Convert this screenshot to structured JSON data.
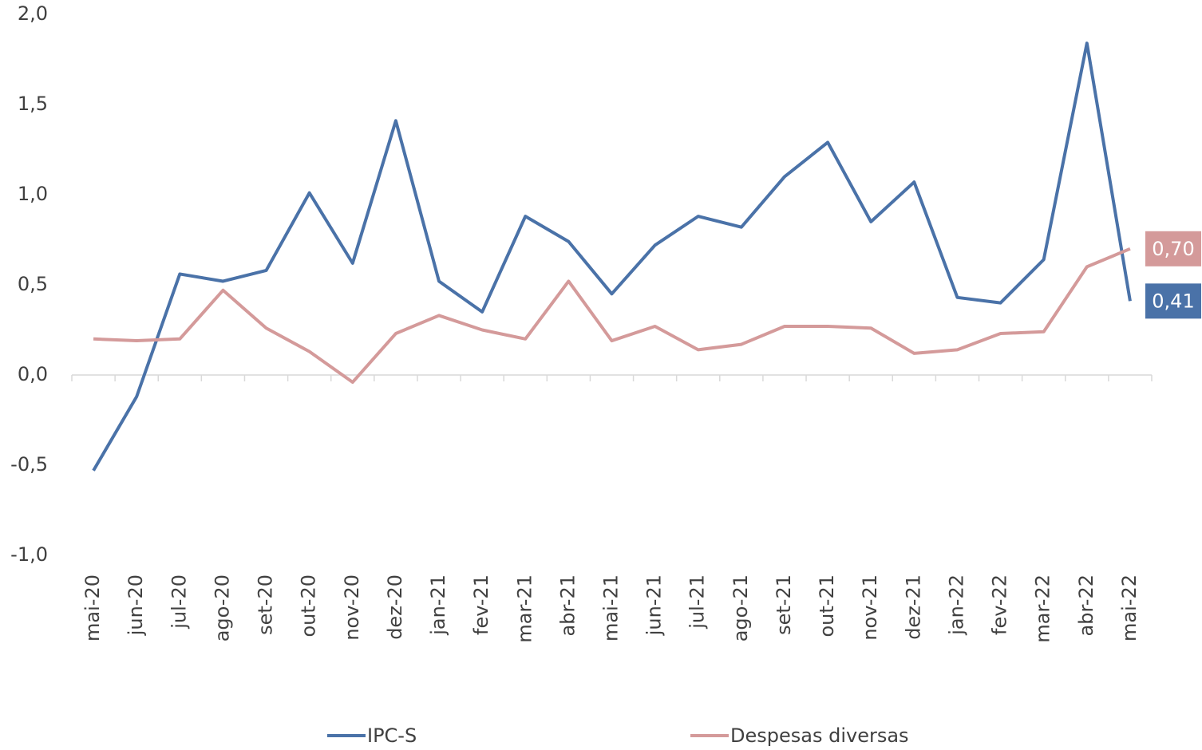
{
  "chart_data": {
    "type": "line",
    "categories": [
      "mai-20",
      "jun-20",
      "jul-20",
      "ago-20",
      "set-20",
      "out-20",
      "nov-20",
      "dez-20",
      "jan-21",
      "fev-21",
      "mar-21",
      "abr-21",
      "mai-21",
      "jun-21",
      "jul-21",
      "ago-21",
      "set-21",
      "out-21",
      "nov-21",
      "dez-21",
      "jan-22",
      "fev-22",
      "mar-22",
      "abr-22",
      "mai-22"
    ],
    "series": [
      {
        "name": "IPC-S",
        "color": "#4a72a8",
        "values": [
          -0.53,
          -0.12,
          0.56,
          0.52,
          0.58,
          1.01,
          0.62,
          1.41,
          0.52,
          0.35,
          0.88,
          0.74,
          0.45,
          0.72,
          0.88,
          0.82,
          1.1,
          1.29,
          0.85,
          1.07,
          0.43,
          0.4,
          0.64,
          1.84,
          0.41
        ],
        "value_labels": [
          null,
          null,
          null,
          null,
          null,
          null,
          null,
          null,
          null,
          null,
          null,
          null,
          null,
          null,
          null,
          null,
          null,
          null,
          null,
          null,
          null,
          null,
          null,
          null,
          "0,41"
        ]
      },
      {
        "name": "Despesas diversas",
        "color": "#d49a9a",
        "values": [
          0.2,
          0.19,
          0.2,
          0.47,
          0.26,
          0.13,
          -0.04,
          0.23,
          0.33,
          0.25,
          0.2,
          0.52,
          0.19,
          0.27,
          0.14,
          0.17,
          0.27,
          0.27,
          0.26,
          0.12,
          0.14,
          0.23,
          0.24,
          0.6,
          0.7
        ],
        "value_labels": [
          null,
          null,
          null,
          null,
          null,
          null,
          null,
          null,
          null,
          null,
          null,
          null,
          null,
          null,
          null,
          null,
          null,
          null,
          null,
          null,
          null,
          null,
          null,
          null,
          "0,70"
        ]
      }
    ],
    "ylim": [
      -1.0,
      2.0
    ],
    "yticks": [
      {
        "value": -1.0,
        "label": "-1,0"
      },
      {
        "value": -0.5,
        "label": "-0,5"
      },
      {
        "value": 0,
        "label": "0,0"
      },
      {
        "value": 0.5,
        "label": "0,5"
      },
      {
        "value": 1.0,
        "label": "1,0"
      },
      {
        "value": 1.5,
        "label": "1,5"
      },
      {
        "value": 2.0,
        "label": "2,0"
      }
    ],
    "grid": false
  }
}
